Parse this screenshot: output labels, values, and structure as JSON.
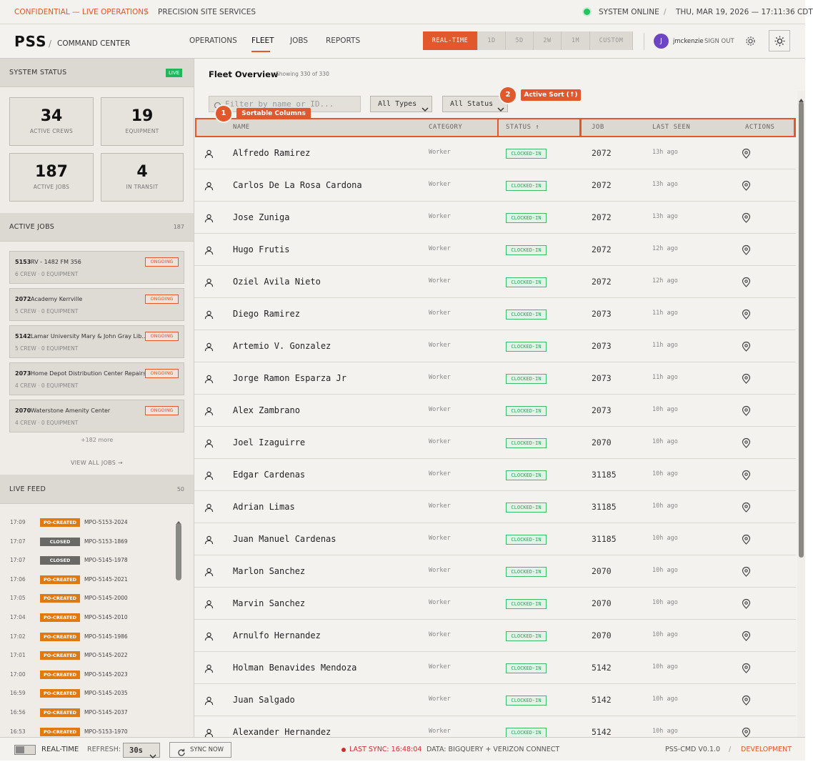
{
  "top_bar": {
    "classification": "CONFIDENTIAL — LIVE OPERATIONS",
    "separator": "/",
    "org": "PRECISION SITE SERVICES",
    "system_status": "SYSTEM ONLINE",
    "datetime": "THU, MAR 19, 2026 — 17:11:36 CDT"
  },
  "header": {
    "logo": "PSS",
    "separator": "/",
    "app_name": "COMMAND CENTER",
    "nav": [
      "OPERATIONS",
      "FLEET",
      "JOBS",
      "REPORTS"
    ],
    "active_nav": "FLEET",
    "time_ranges": [
      "REAL-TIME",
      "1D",
      "5D",
      "2W",
      "1M",
      "CUSTOM"
    ],
    "active_range": "REAL-TIME",
    "user": {
      "initial": "J",
      "name": "jmckenzie",
      "sign_out": "SIGN OUT"
    }
  },
  "sidebar": {
    "system_status": {
      "title": "SYSTEM STATUS",
      "badge": "LIVE",
      "stats": [
        {
          "value": 34,
          "label": "ACTIVE CREWS"
        },
        {
          "value": 19,
          "label": "EQUIPMENT"
        },
        {
          "value": 187,
          "label": "ACTIVE JOBS"
        },
        {
          "value": 4,
          "label": "IN TRANSIT"
        }
      ]
    },
    "active_jobs": {
      "title": "ACTIVE JOBS",
      "count": 187,
      "jobs": [
        {
          "id": "5153",
          "name": "RV - 1482 FM 356",
          "status": "ONGOING",
          "meta": "6 CREW · 0 EQUIPMENT"
        },
        {
          "id": "2072",
          "name": "Academy Kerrville",
          "status": "ONGOING",
          "meta": "5 CREW · 0 EQUIPMENT"
        },
        {
          "id": "5142",
          "name": "Lamar University Mary & John Gray Lib...",
          "status": "ONGOING",
          "meta": "5 CREW · 0 EQUIPMENT"
        },
        {
          "id": "2073",
          "name": "Home Depot Distribution Center Repairs",
          "status": "ONGOING",
          "meta": "4 CREW · 0 EQUIPMENT"
        },
        {
          "id": "2070",
          "name": "Waterstone Amenity Center",
          "status": "ONGOING",
          "meta": "4 CREW · 0 EQUIPMENT"
        }
      ],
      "more": "+182 more",
      "view_all": "VIEW ALL JOBS →"
    },
    "live_feed": {
      "title": "LIVE FEED",
      "count": 50,
      "items": [
        {
          "time": "17:09",
          "type": "PO-CREATED",
          "id": "MPO-5153-2024"
        },
        {
          "time": "17:07",
          "type": "CLOSED",
          "id": "MPO-5153-1869"
        },
        {
          "time": "17:07",
          "type": "CLOSED",
          "id": "MPO-5145-1978"
        },
        {
          "time": "17:06",
          "type": "PO-CREATED",
          "id": "MPO-5145-2021"
        },
        {
          "time": "17:05",
          "type": "PO-CREATED",
          "id": "MPO-5145-2000"
        },
        {
          "time": "17:04",
          "type": "PO-CREATED",
          "id": "MPO-5145-2010"
        },
        {
          "time": "17:02",
          "type": "PO-CREATED",
          "id": "MPO-5145-1986"
        },
        {
          "time": "17:01",
          "type": "PO-CREATED",
          "id": "MPO-5145-2022"
        },
        {
          "time": "17:00",
          "type": "PO-CREATED",
          "id": "MPO-5145-2023"
        },
        {
          "time": "16:59",
          "type": "PO-CREATED",
          "id": "MPO-5145-2035"
        },
        {
          "time": "16:56",
          "type": "PO-CREATED",
          "id": "MPO-5145-2037"
        },
        {
          "time": "16:53",
          "type": "PO-CREATED",
          "id": "MPO-5153-1970"
        }
      ]
    }
  },
  "main": {
    "title": "Fleet Overview",
    "showing": "Showing 330 of 330",
    "filter_placeholder": "Filter by name or ID...",
    "type_filter": "All Types",
    "status_filter": "All Status",
    "annotations": [
      {
        "number": 1,
        "label": "Sortable Columns"
      },
      {
        "number": 2,
        "label": "Active Sort (↑)"
      }
    ],
    "columns": [
      "NAME",
      "CATEGORY",
      "STATUS ↑",
      "JOB",
      "LAST SEEN",
      "ACTIONS"
    ],
    "rows": [
      [
        "Alfredo Ramirez",
        "Worker",
        "CLOCKED-IN",
        "2072",
        "13h ago"
      ],
      [
        "Carlos De La Rosa Cardona",
        "Worker",
        "CLOCKED-IN",
        "2072",
        "13h ago"
      ],
      [
        "Jose Zuniga",
        "Worker",
        "CLOCKED-IN",
        "2072",
        "13h ago"
      ],
      [
        "Hugo Frutis",
        "Worker",
        "CLOCKED-IN",
        "2072",
        "12h ago"
      ],
      [
        "Oziel Avila Nieto",
        "Worker",
        "CLOCKED-IN",
        "2072",
        "12h ago"
      ],
      [
        "Diego Ramirez",
        "Worker",
        "CLOCKED-IN",
        "2073",
        "11h ago"
      ],
      [
        "Artemio V. Gonzalez",
        "Worker",
        "CLOCKED-IN",
        "2073",
        "11h ago"
      ],
      [
        "Jorge Ramon Esparza Jr",
        "Worker",
        "CLOCKED-IN",
        "2073",
        "11h ago"
      ],
      [
        "Alex Zambrano",
        "Worker",
        "CLOCKED-IN",
        "2073",
        "10h ago"
      ],
      [
        "Joel Izaguirre",
        "Worker",
        "CLOCKED-IN",
        "2070",
        "10h ago"
      ],
      [
        "Edgar Cardenas",
        "Worker",
        "CLOCKED-IN",
        "31185",
        "10h ago"
      ],
      [
        "Adrian Limas",
        "Worker",
        "CLOCKED-IN",
        "31185",
        "10h ago"
      ],
      [
        "Juan Manuel Cardenas",
        "Worker",
        "CLOCKED-IN",
        "31185",
        "10h ago"
      ],
      [
        "Marlon Sanchez",
        "Worker",
        "CLOCKED-IN",
        "2070",
        "10h ago"
      ],
      [
        "Marvin Sanchez",
        "Worker",
        "CLOCKED-IN",
        "2070",
        "10h ago"
      ],
      [
        "Arnulfo Hernandez",
        "Worker",
        "CLOCKED-IN",
        "2070",
        "10h ago"
      ],
      [
        "Holman Benavides Mendoza",
        "Worker",
        "CLOCKED-IN",
        "5142",
        "10h ago"
      ],
      [
        "Juan Salgado",
        "Worker",
        "CLOCKED-IN",
        "5142",
        "10h ago"
      ],
      [
        "Alexander Hernandez",
        "Worker",
        "CLOCKED-IN",
        "5142",
        "10h ago"
      ]
    ]
  },
  "footer": {
    "mode": "REAL-TIME",
    "refresh_label": "REFRESH:",
    "refresh_value": "30s",
    "sync_button": "SYNC NOW",
    "last_sync": "LAST SYNC: 16:48:04",
    "data_source": "DATA: BIGQUERY + VERIZON CONNECT",
    "version": "PSS-CMD V0.1.0",
    "separator": "/",
    "environment": "DEVELOPMENT"
  }
}
